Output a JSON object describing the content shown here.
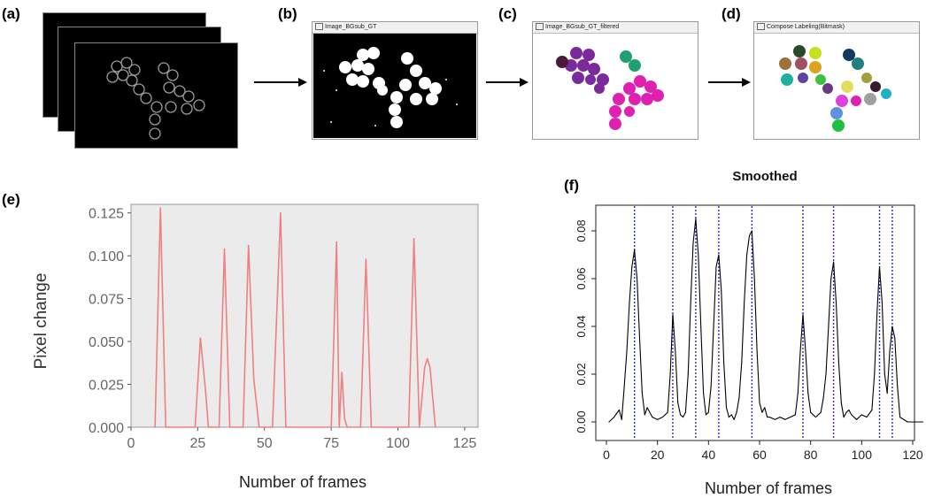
{
  "panels": {
    "a": "(a)",
    "b": "(b)",
    "c": "(c)",
    "d": "(d)",
    "e": "(e)",
    "f": "(f)"
  },
  "windows": {
    "b_title": "Image_BGsub_GT",
    "c_title": "Image_BGsub_GT_filtered",
    "d_title": "Compose Labeling(Bitmask)"
  },
  "colors": {
    "e_line": "#f08080",
    "e_bg": "#ebebeb",
    "f_line": "#000000",
    "f_vlines": "#3333ee",
    "c_purple": "#7a2a9a",
    "c_magenta": "#e020b0",
    "c_green": "#20a070",
    "c_dark": "#4a1a3a"
  },
  "chart_data": [
    {
      "type": "line",
      "panel": "e",
      "title": "",
      "xlabel": "Number of frames",
      "ylabel": "Pixel change",
      "xlim": [
        0,
        130
      ],
      "ylim": [
        0,
        0.13
      ],
      "xticks": [
        0,
        25,
        50,
        75,
        100,
        125
      ],
      "yticks": [
        0.0,
        0.025,
        0.05,
        0.075,
        0.1,
        0.125
      ],
      "ytick_labels": [
        "0.000",
        "0.025",
        "0.050",
        "0.075",
        "0.100",
        "0.125"
      ],
      "grid": false,
      "series": [
        {
          "x": [
            9,
            11,
            13,
            24,
            26,
            28,
            29,
            33,
            35,
            37,
            42,
            44,
            46,
            48,
            53,
            56,
            58,
            75,
            77,
            78,
            79,
            80,
            81,
            86,
            88,
            90,
            104,
            106,
            108,
            110,
            111,
            112,
            114
          ],
          "y": [
            0,
            0.128,
            0,
            0,
            0.052,
            0.02,
            0,
            0,
            0.104,
            0,
            0,
            0.106,
            0.028,
            0,
            0,
            0.125,
            0,
            0,
            0.108,
            0,
            0.032,
            0.005,
            0,
            0,
            0.098,
            0,
            0,
            0.11,
            0,
            0.035,
            0.04,
            0.035,
            0
          ]
        }
      ]
    },
    {
      "type": "line",
      "panel": "f",
      "title": "Smoothed",
      "xlabel": "Number of frames",
      "ylabel": "",
      "xlim": [
        0,
        125
      ],
      "ylim": [
        0,
        0.085
      ],
      "xticks": [
        0,
        20,
        40,
        60,
        80,
        100,
        120
      ],
      "yticks": [
        0.0,
        0.02,
        0.04,
        0.06,
        0.08
      ],
      "ytick_labels": [
        "0.00",
        "0.02",
        "0.04",
        "0.06",
        "0.08"
      ],
      "grid": false,
      "vlines": [
        11,
        26,
        35,
        44,
        57,
        77,
        89,
        107,
        112
      ],
      "series": [
        {
          "x": [
            1,
            3,
            5,
            6,
            7,
            8,
            9,
            10,
            11,
            12,
            13,
            14,
            15,
            16,
            17,
            18,
            20,
            22,
            24,
            25,
            26,
            27,
            28,
            29,
            30,
            31,
            32,
            33,
            34,
            35,
            36,
            37,
            38,
            39,
            40,
            41,
            42,
            43,
            44,
            45,
            46,
            47,
            48,
            49,
            50,
            51,
            52,
            53,
            54,
            55,
            56,
            57,
            58,
            59,
            60,
            61,
            62,
            63,
            64,
            66,
            68,
            70,
            72,
            74,
            75,
            76,
            77,
            78,
            79,
            80,
            82,
            84,
            85,
            86,
            87,
            88,
            89,
            90,
            91,
            92,
            93,
            94,
            95,
            96,
            98,
            100,
            102,
            104,
            105,
            106,
            107,
            108,
            109,
            110,
            111,
            112,
            113,
            114,
            115,
            118,
            121,
            124
          ],
          "y": [
            0.0,
            0.002,
            0.005,
            0.001,
            0.015,
            0.03,
            0.05,
            0.065,
            0.072,
            0.06,
            0.035,
            0.012,
            0.003,
            0.006,
            0.004,
            0.002,
            0.001,
            0.002,
            0.004,
            0.02,
            0.045,
            0.03,
            0.008,
            0.003,
            0.002,
            0.004,
            0.02,
            0.05,
            0.075,
            0.085,
            0.07,
            0.04,
            0.012,
            0.003,
            0.004,
            0.015,
            0.04,
            0.065,
            0.07,
            0.055,
            0.025,
            0.006,
            0.002,
            0.003,
            0.001,
            0.004,
            0.01,
            0.025,
            0.05,
            0.07,
            0.078,
            0.08,
            0.06,
            0.03,
            0.008,
            0.004,
            0.006,
            0.002,
            0.002,
            0.001,
            0.002,
            0.001,
            0.002,
            0.003,
            0.012,
            0.03,
            0.045,
            0.03,
            0.012,
            0.004,
            0.002,
            0.004,
            0.01,
            0.02,
            0.04,
            0.06,
            0.067,
            0.05,
            0.025,
            0.008,
            0.002,
            0.004,
            0.005,
            0.003,
            0.001,
            0.003,
            0.002,
            0.005,
            0.02,
            0.045,
            0.065,
            0.05,
            0.02,
            0.012,
            0.03,
            0.04,
            0.035,
            0.015,
            0.002,
            0.0,
            0.0,
            0.0
          ]
        }
      ]
    }
  ]
}
